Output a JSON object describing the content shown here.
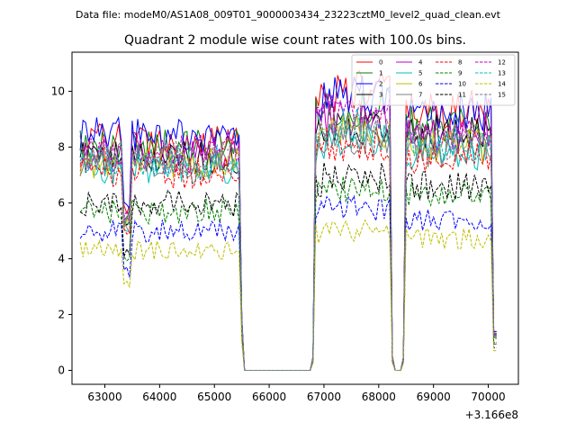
{
  "figure": {
    "suptitle": "Data file: modeM0/AS1A08_009T01_9000003434_23223cztM0_level2_quad_clean.evt"
  },
  "chart_data": {
    "type": "line",
    "title": "Quadrant 2 module wise count rates with 100.0s bins.",
    "xlabel": "",
    "ylabel": "",
    "x_offset_label": "+3.166e8",
    "xlim": [
      62400,
      70550
    ],
    "ylim": [
      -0.5,
      11.4
    ],
    "xticks": [
      63000,
      64000,
      65000,
      66000,
      67000,
      68000,
      69000,
      70000
    ],
    "yticks": [
      0,
      2,
      4,
      6,
      8,
      10
    ],
    "legend_position": "upper-right",
    "legend_columns": 4,
    "segments": [
      {
        "start": 62550,
        "end": 65450,
        "transition_end": 65550
      },
      {
        "start": 66850,
        "end": 68200,
        "transition_start": 66750
      },
      {
        "start": 68500,
        "end": 70150
      }
    ],
    "gaps": [
      {
        "start": 65550,
        "end": 66750,
        "value": 0.0
      },
      {
        "start": 68250,
        "end": 68450,
        "value": 0.0
      }
    ],
    "dip_times": [
      63400,
      68300,
      68400
    ],
    "series": [
      {
        "name": "0",
        "color": "#ff0000",
        "dash": "solid",
        "segment_means": [
          8.2,
          10.0,
          9.3
        ]
      },
      {
        "name": "1",
        "color": "#008000",
        "dash": "solid",
        "segment_means": [
          8.0,
          9.4,
          8.8
        ]
      },
      {
        "name": "2",
        "color": "#0000ff",
        "dash": "solid",
        "segment_means": [
          8.4,
          9.8,
          9.2
        ]
      },
      {
        "name": "3",
        "color": "#000000",
        "dash": "solid",
        "segment_means": [
          7.6,
          8.8,
          8.5
        ]
      },
      {
        "name": "4",
        "color": "#bf00bf",
        "dash": "solid",
        "segment_means": [
          7.7,
          9.0,
          8.6
        ]
      },
      {
        "name": "5",
        "color": "#00bfbf",
        "dash": "solid",
        "segment_means": [
          7.2,
          8.2,
          7.8
        ]
      },
      {
        "name": "6",
        "color": "#bfbf00",
        "dash": "solid",
        "segment_means": [
          7.4,
          8.5,
          8.0
        ]
      },
      {
        "name": "7",
        "color": "#808080",
        "dash": "solid",
        "segment_means": [
          7.3,
          8.4,
          7.9
        ]
      },
      {
        "name": "8",
        "color": "#ff0000",
        "dash": "dashed",
        "segment_means": [
          7.1,
          8.1,
          7.6
        ]
      },
      {
        "name": "9",
        "color": "#008000",
        "dash": "dashed",
        "segment_means": [
          5.7,
          6.5,
          6.3
        ]
      },
      {
        "name": "10",
        "color": "#0000ff",
        "dash": "dashed",
        "segment_means": [
          5.0,
          5.8,
          5.4
        ]
      },
      {
        "name": "11",
        "color": "#000000",
        "dash": "dashed",
        "segment_means": [
          6.0,
          6.9,
          6.6
        ]
      },
      {
        "name": "12",
        "color": "#bf00bf",
        "dash": "dashed",
        "segment_means": [
          7.9,
          9.2,
          8.4
        ]
      },
      {
        "name": "13",
        "color": "#00bfbf",
        "dash": "dashed",
        "segment_means": [
          7.5,
          8.7,
          8.1
        ]
      },
      {
        "name": "14",
        "color": "#bfbf00",
        "dash": "dashed",
        "segment_means": [
          4.3,
          5.0,
          4.7
        ]
      },
      {
        "name": "15",
        "color": "#808080",
        "dash": "dashed",
        "segment_means": [
          7.6,
          8.6,
          8.2
        ]
      }
    ]
  }
}
